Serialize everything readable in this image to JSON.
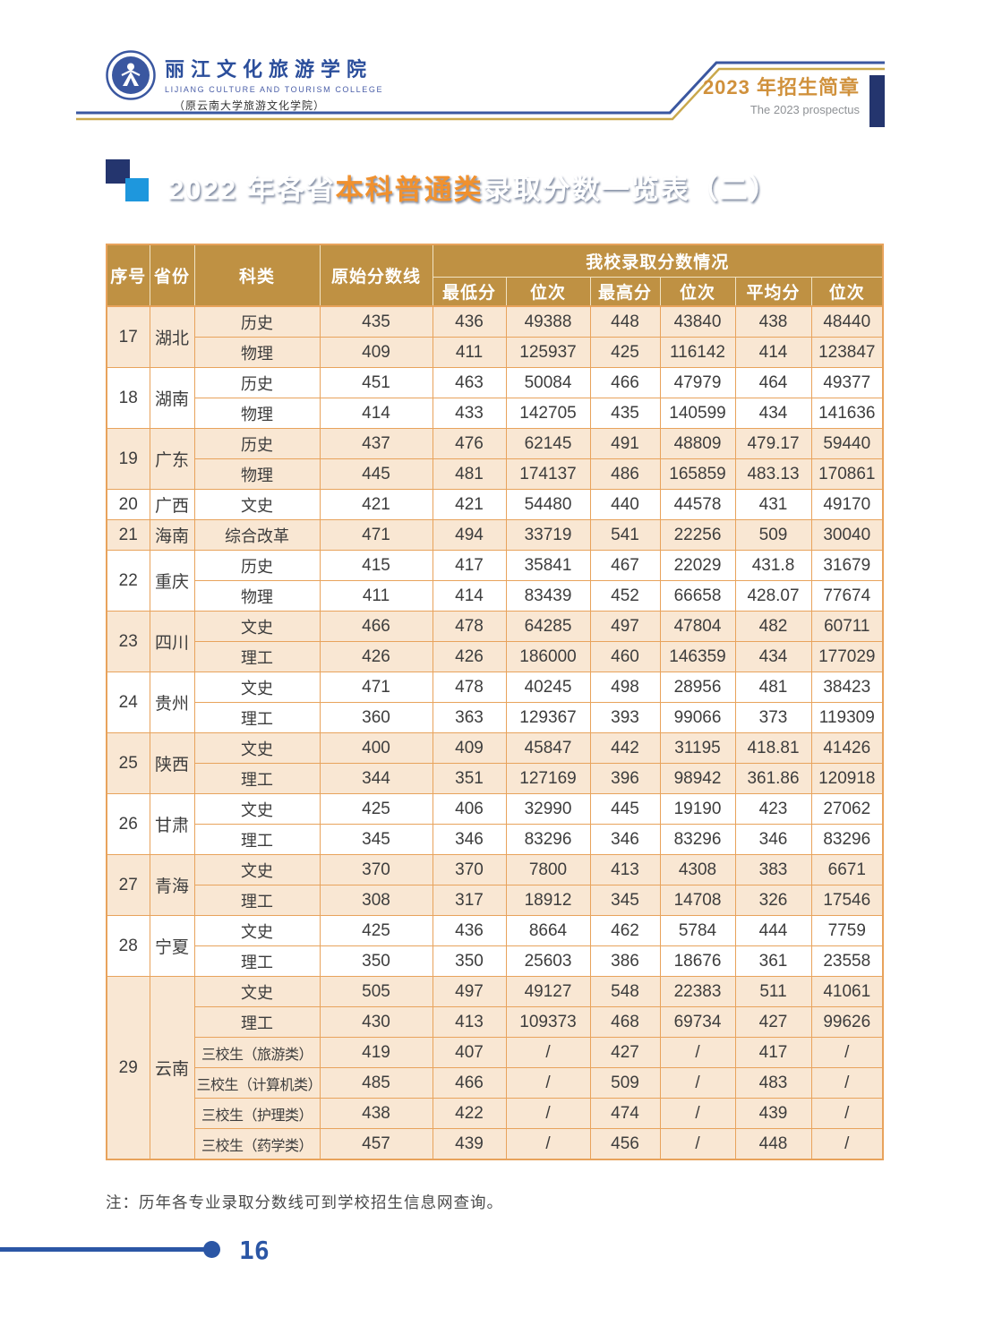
{
  "header": {
    "college_name": "丽江文化旅游学院",
    "college_name_en": "LIJIANG CULTURE AND TOURISM COLLEGE",
    "college_subtitle": "（原云南大学旅游文化学院）",
    "prospectus_title": "2023 年招生简章",
    "prospectus_subtitle": "The 2023 prospectus"
  },
  "banner": {
    "title_prefix": "2022 年各省",
    "title_highlight": "本科普通类",
    "title_suffix": "录取分数一览表（二）"
  },
  "table": {
    "col_headers": {
      "seq": "序号",
      "province": "省份",
      "subject": "科类",
      "original_line": "原始分数线",
      "group_header": "我校录取分数情况",
      "sub_headers": [
        "最低分",
        "位次",
        "最高分",
        "位次",
        "平均分",
        "位次"
      ]
    },
    "groups": [
      {
        "seq": "17",
        "province": "湖北",
        "rows": [
          {
            "subject": "历史",
            "values": [
              "435",
              "436",
              "49388",
              "448",
              "43840",
              "438",
              "48440"
            ]
          },
          {
            "subject": "物理",
            "values": [
              "409",
              "411",
              "125937",
              "425",
              "116142",
              "414",
              "123847"
            ]
          }
        ]
      },
      {
        "seq": "18",
        "province": "湖南",
        "rows": [
          {
            "subject": "历史",
            "values": [
              "451",
              "463",
              "50084",
              "466",
              "47979",
              "464",
              "49377"
            ]
          },
          {
            "subject": "物理",
            "values": [
              "414",
              "433",
              "142705",
              "435",
              "140599",
              "434",
              "141636"
            ]
          }
        ]
      },
      {
        "seq": "19",
        "province": "广东",
        "rows": [
          {
            "subject": "历史",
            "values": [
              "437",
              "476",
              "62145",
              "491",
              "48809",
              "479.17",
              "59440"
            ]
          },
          {
            "subject": "物理",
            "values": [
              "445",
              "481",
              "174137",
              "486",
              "165859",
              "483.13",
              "170861"
            ]
          }
        ]
      },
      {
        "seq": "20",
        "province": "广西",
        "rows": [
          {
            "subject": "文史",
            "values": [
              "421",
              "421",
              "54480",
              "440",
              "44578",
              "431",
              "49170"
            ]
          }
        ]
      },
      {
        "seq": "21",
        "province": "海南",
        "rows": [
          {
            "subject": "综合改革",
            "values": [
              "471",
              "494",
              "33719",
              "541",
              "22256",
              "509",
              "30040"
            ]
          }
        ]
      },
      {
        "seq": "22",
        "province": "重庆",
        "rows": [
          {
            "subject": "历史",
            "values": [
              "415",
              "417",
              "35841",
              "467",
              "22029",
              "431.8",
              "31679"
            ]
          },
          {
            "subject": "物理",
            "values": [
              "411",
              "414",
              "83439",
              "452",
              "66658",
              "428.07",
              "77674"
            ]
          }
        ]
      },
      {
        "seq": "23",
        "province": "四川",
        "rows": [
          {
            "subject": "文史",
            "values": [
              "466",
              "478",
              "64285",
              "497",
              "47804",
              "482",
              "60711"
            ]
          },
          {
            "subject": "理工",
            "values": [
              "426",
              "426",
              "186000",
              "460",
              "146359",
              "434",
              "177029"
            ]
          }
        ]
      },
      {
        "seq": "24",
        "province": "贵州",
        "rows": [
          {
            "subject": "文史",
            "values": [
              "471",
              "478",
              "40245",
              "498",
              "28956",
              "481",
              "38423"
            ]
          },
          {
            "subject": "理工",
            "values": [
              "360",
              "363",
              "129367",
              "393",
              "99066",
              "373",
              "119309"
            ]
          }
        ]
      },
      {
        "seq": "25",
        "province": "陕西",
        "rows": [
          {
            "subject": "文史",
            "values": [
              "400",
              "409",
              "45847",
              "442",
              "31195",
              "418.81",
              "41426"
            ]
          },
          {
            "subject": "理工",
            "values": [
              "344",
              "351",
              "127169",
              "396",
              "98942",
              "361.86",
              "120918"
            ]
          }
        ]
      },
      {
        "seq": "26",
        "province": "甘肃",
        "rows": [
          {
            "subject": "文史",
            "values": [
              "425",
              "406",
              "32990",
              "445",
              "19190",
              "423",
              "27062"
            ]
          },
          {
            "subject": "理工",
            "values": [
              "345",
              "346",
              "83296",
              "346",
              "83296",
              "346",
              "83296"
            ]
          }
        ]
      },
      {
        "seq": "27",
        "province": "青海",
        "rows": [
          {
            "subject": "文史",
            "values": [
              "370",
              "370",
              "7800",
              "413",
              "4308",
              "383",
              "6671"
            ]
          },
          {
            "subject": "理工",
            "values": [
              "308",
              "317",
              "18912",
              "345",
              "14708",
              "326",
              "17546"
            ]
          }
        ]
      },
      {
        "seq": "28",
        "province": "宁夏",
        "rows": [
          {
            "subject": "文史",
            "values": [
              "425",
              "436",
              "8664",
              "462",
              "5784",
              "444",
              "7759"
            ]
          },
          {
            "subject": "理工",
            "values": [
              "350",
              "350",
              "25603",
              "386",
              "18676",
              "361",
              "23558"
            ]
          }
        ]
      },
      {
        "seq": "29",
        "province": "云南",
        "rows": [
          {
            "subject": "文史",
            "values": [
              "505",
              "497",
              "49127",
              "548",
              "22383",
              "511",
              "41061"
            ]
          },
          {
            "subject": "理工",
            "values": [
              "430",
              "413",
              "109373",
              "468",
              "69734",
              "427",
              "99626"
            ]
          },
          {
            "subject": "三校生（旅游类）",
            "values": [
              "419",
              "407",
              "/",
              "427",
              "/",
              "417",
              "/"
            ]
          },
          {
            "subject": "三校生（计算机类）",
            "values": [
              "485",
              "466",
              "/",
              "509",
              "/",
              "483",
              "/"
            ]
          },
          {
            "subject": "三校生（护理类）",
            "values": [
              "438",
              "422",
              "/",
              "474",
              "/",
              "439",
              "/"
            ]
          },
          {
            "subject": "三校生（药学类）",
            "values": [
              "457",
              "439",
              "/",
              "456",
              "/",
              "448",
              "/"
            ]
          }
        ]
      }
    ]
  },
  "note": "注：历年各专业录取分数线可到学校招生信息网查询。",
  "footer": {
    "page_number": "16"
  },
  "colors": {
    "table_header_bg": "#bf9143",
    "table_border": "#e8a35c",
    "row_shade_bg": "#f9e7d3",
    "banner_highlight": "#f0912f",
    "banner_gradient_start": "#4d89b1",
    "brand_navy": "#24356e",
    "brand_blue": "#2b56a5",
    "gold_line": "#c9a84c",
    "prospectus_orange": "#d0913c"
  }
}
